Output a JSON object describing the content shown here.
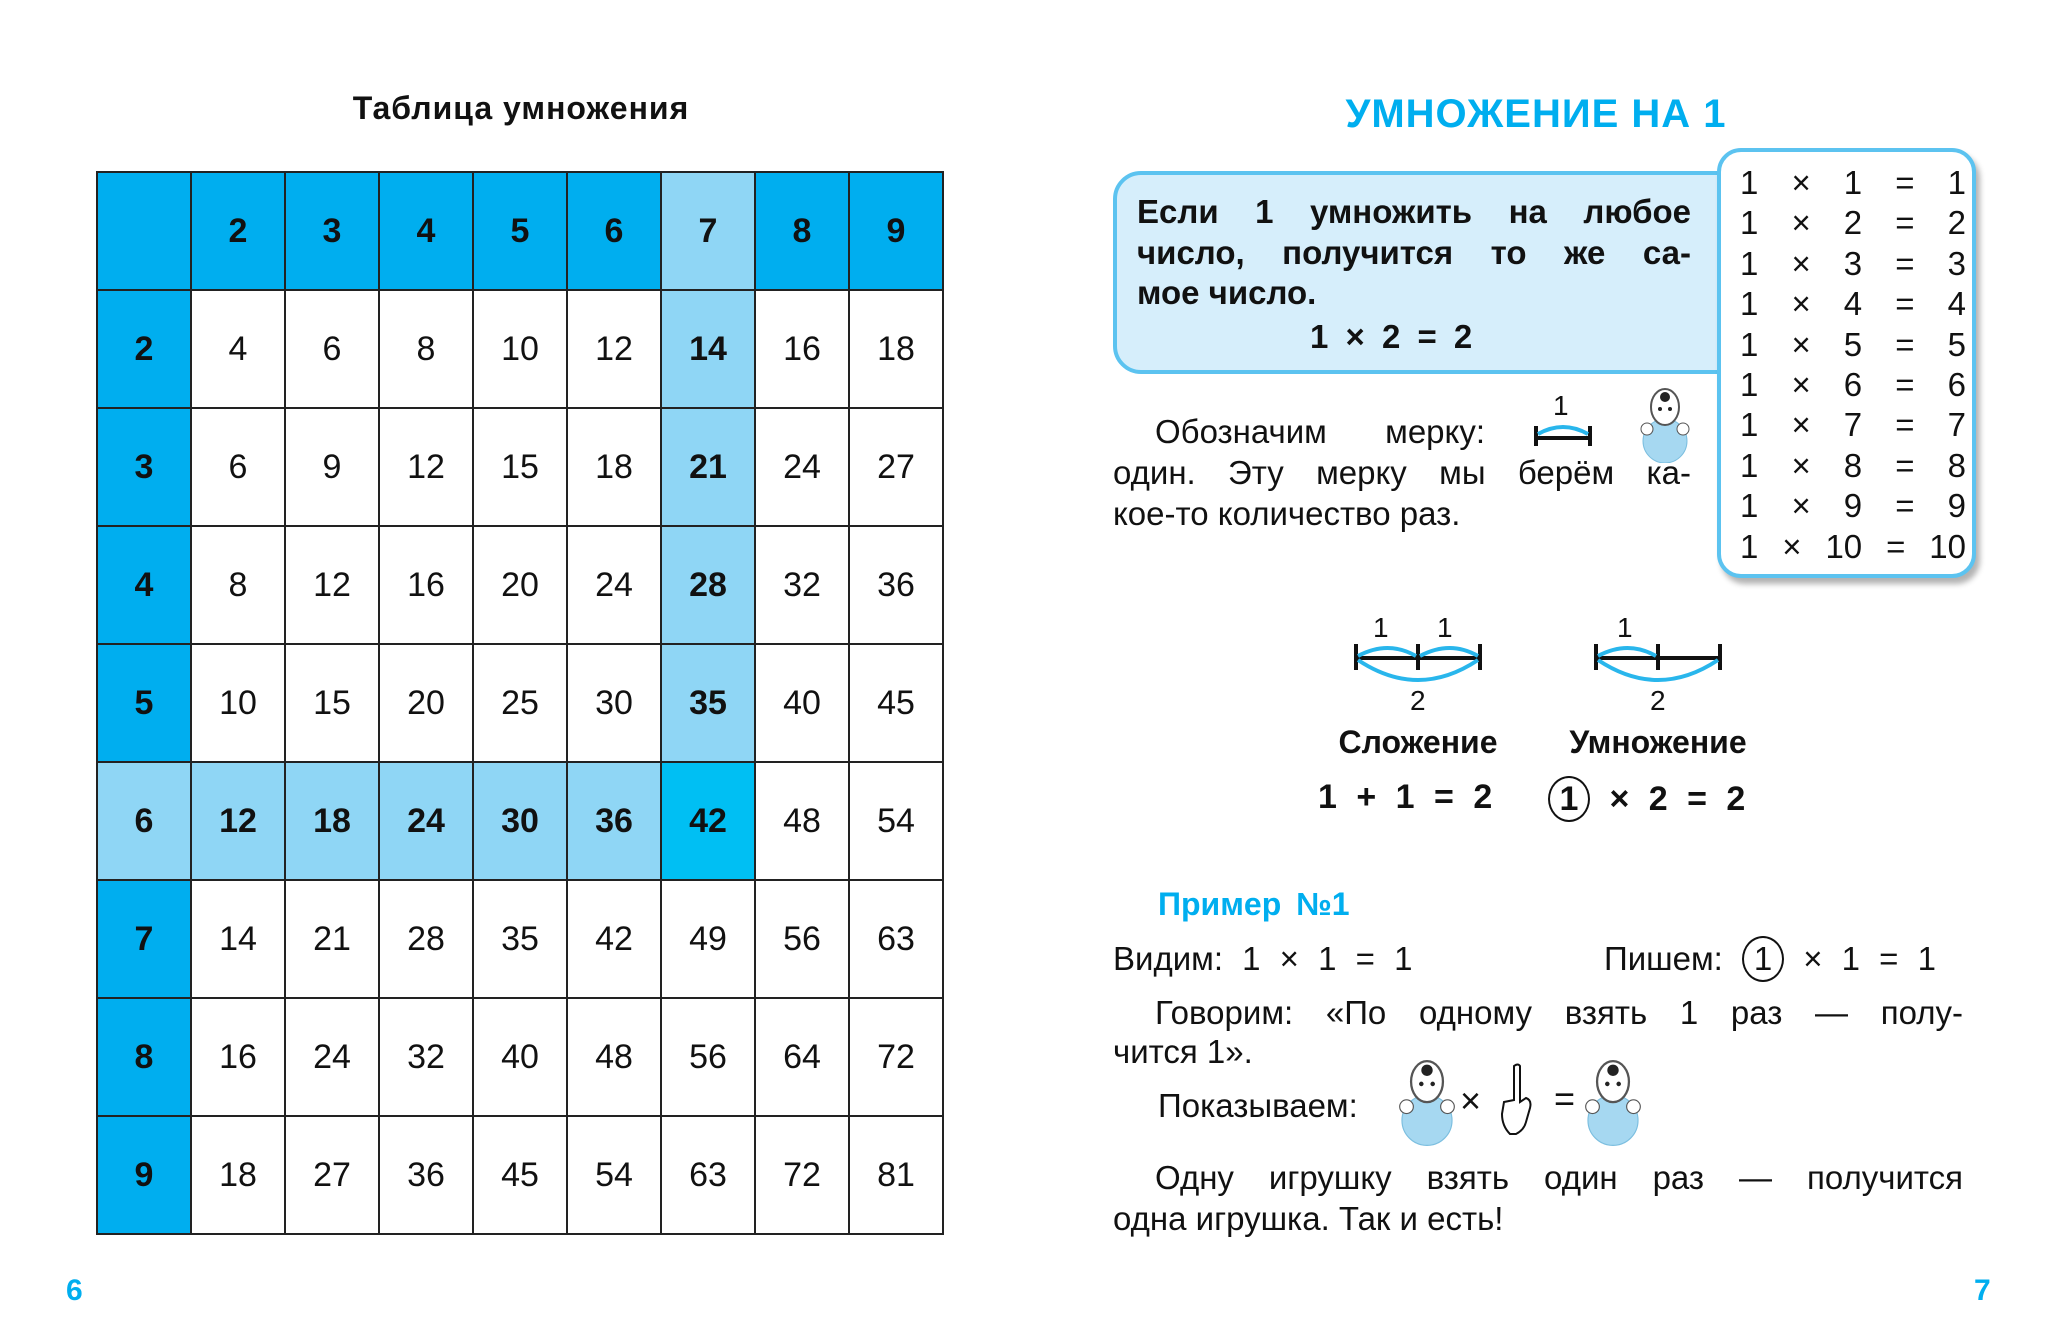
{
  "left_page": {
    "title": "Таблица умножения",
    "header": [
      "",
      "2",
      "3",
      "4",
      "5",
      "6",
      "7",
      "8",
      "9"
    ],
    "rows": [
      [
        "2",
        "4",
        "6",
        "8",
        "10",
        "12",
        "14",
        "16",
        "18"
      ],
      [
        "3",
        "6",
        "9",
        "12",
        "15",
        "18",
        "21",
        "24",
        "27"
      ],
      [
        "4",
        "8",
        "12",
        "16",
        "20",
        "24",
        "28",
        "32",
        "36"
      ],
      [
        "5",
        "10",
        "15",
        "20",
        "25",
        "30",
        "35",
        "40",
        "45"
      ],
      [
        "6",
        "12",
        "18",
        "24",
        "30",
        "36",
        "42",
        "48",
        "54"
      ],
      [
        "7",
        "14",
        "21",
        "28",
        "35",
        "42",
        "49",
        "56",
        "63"
      ],
      [
        "8",
        "16",
        "24",
        "32",
        "40",
        "48",
        "56",
        "64",
        "72"
      ],
      [
        "9",
        "18",
        "27",
        "36",
        "45",
        "54",
        "63",
        "72",
        "81"
      ]
    ],
    "highlight_row": "6",
    "highlight_col": "7",
    "page_number": "6"
  },
  "right_page": {
    "title": "УМНОЖЕНИЕ НА 1",
    "rule": {
      "lines": [
        "Если 1 умножить на любое",
        "число, получится то же са-",
        "мое число."
      ],
      "example": "1 × 2 = 2"
    },
    "facts": [
      [
        "1",
        "×",
        "1",
        "=",
        "1"
      ],
      [
        "1",
        "×",
        "2",
        "=",
        "2"
      ],
      [
        "1",
        "×",
        "3",
        "=",
        "3"
      ],
      [
        "1",
        "×",
        "4",
        "=",
        "4"
      ],
      [
        "1",
        "×",
        "5",
        "=",
        "5"
      ],
      [
        "1",
        "×",
        "6",
        "=",
        "6"
      ],
      [
        "1",
        "×",
        "7",
        "=",
        "7"
      ],
      [
        "1",
        "×",
        "8",
        "=",
        "8"
      ],
      [
        "1",
        "×",
        "9",
        "=",
        "9"
      ],
      [
        "1",
        "×",
        "10",
        "=",
        "10"
      ]
    ],
    "measure": {
      "lines": [
        "Обозначим мерку:",
        "один. Эту мерку мы берём ка-",
        "кое-то количество раз."
      ],
      "label": "1"
    },
    "diagram": {
      "add_top": [
        "1",
        "1"
      ],
      "add_bottom": "2",
      "mul_top": "1",
      "mul_bottom": "2",
      "add_label": "Сложение",
      "mul_label": "Умножение",
      "add_eq": "1 + 1 = 2",
      "mul_circle": "1",
      "mul_eq": "× 2 = 2"
    },
    "example": {
      "title": "Пример №1",
      "see": "Видим: 1 × 1 = 1",
      "write_label": "Пишем:",
      "write_circle": "1",
      "write_rest": "× 1 = 1",
      "say": [
        "Говорим: «По одному взять 1 раз — полу-",
        "чится 1»."
      ],
      "show": "Показываем:",
      "times": "×",
      "equals": "=",
      "conclusion": [
        "Одну игрушку взять один раз — получится",
        "одна игрушка. Так и есть!"
      ]
    },
    "page_number": "7"
  },
  "colors": {
    "accent": "#00aeef",
    "light": "#8fd6f5",
    "box": "#d6eefb"
  }
}
